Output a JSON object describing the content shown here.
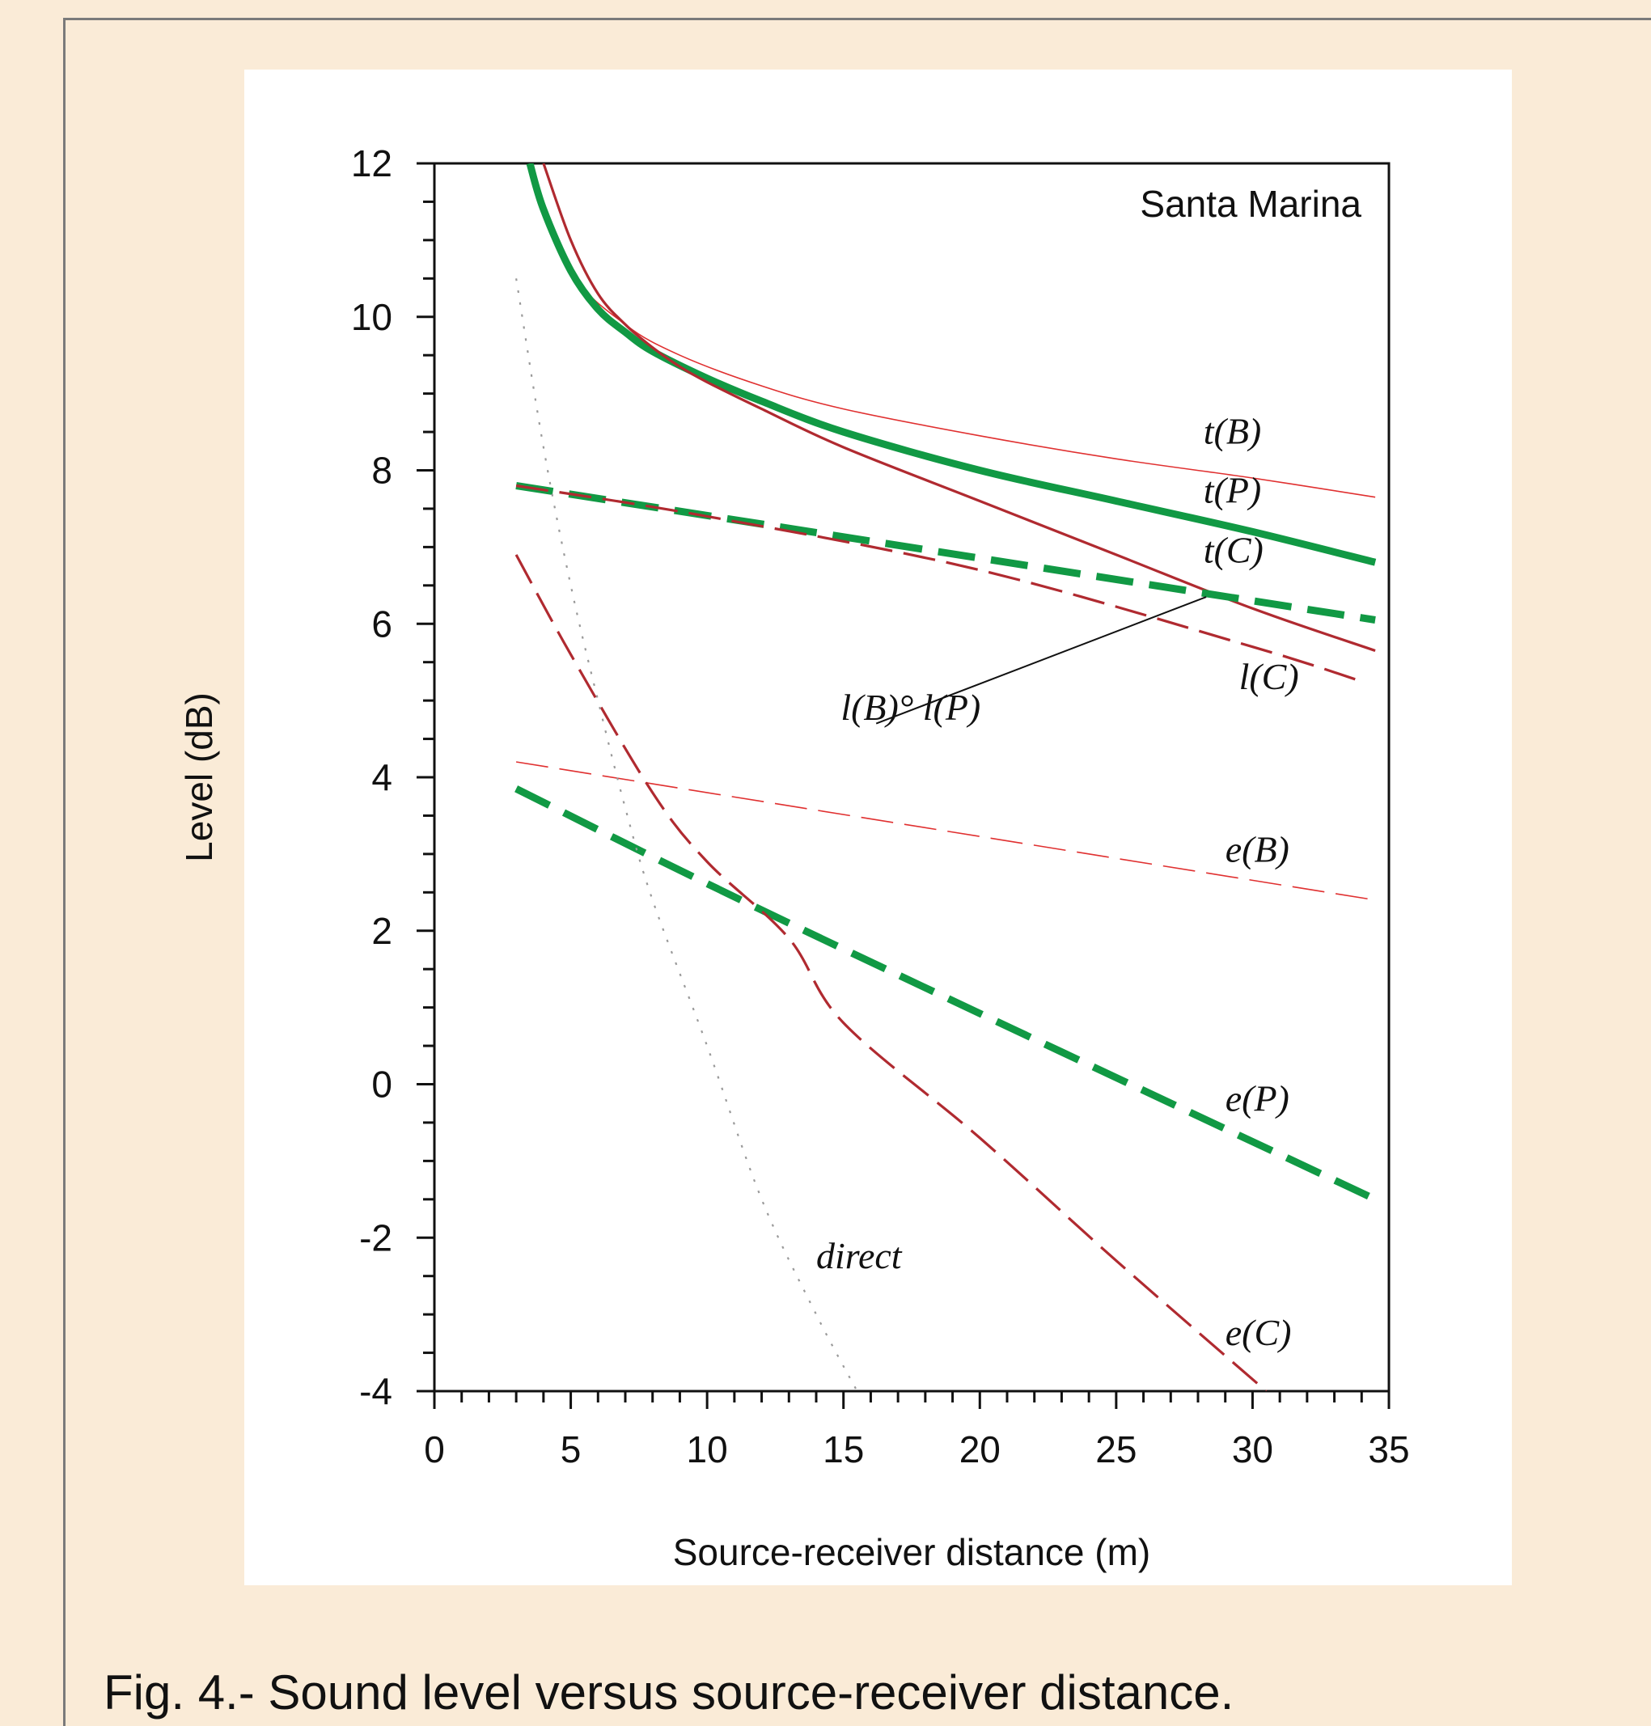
{
  "chart_data": {
    "type": "line",
    "title": "Santa Marina",
    "xlabel": "Source-receiver distance (m)",
    "ylabel": "Level (dB)",
    "xlim": [
      0,
      35
    ],
    "ylim": [
      -4,
      12
    ],
    "x_ticks": [
      "0",
      "5",
      "10",
      "15",
      "20",
      "25",
      "30",
      "35"
    ],
    "y_ticks": [
      "-4",
      "-2",
      "0",
      "2",
      "4",
      "6",
      "8",
      "10",
      "12"
    ],
    "grid": false,
    "legend": "none",
    "series": [
      {
        "name": "t(B)",
        "color": "#e03030",
        "style": "thin-solid",
        "x": [
          3.5,
          5,
          7,
          9,
          12,
          15,
          20,
          25,
          30,
          34.5
        ],
        "y": [
          12.0,
          10.6,
          9.9,
          9.5,
          9.1,
          8.8,
          8.45,
          8.15,
          7.9,
          7.65
        ]
      },
      {
        "name": "t(P)",
        "color": "#119944",
        "style": "thick-solid",
        "x": [
          3.5,
          4,
          5,
          6,
          7,
          8,
          10,
          12,
          15,
          20,
          25,
          30,
          34.5
        ],
        "y": [
          12.0,
          11.4,
          10.6,
          10.1,
          9.8,
          9.55,
          9.2,
          8.9,
          8.5,
          8.0,
          7.6,
          7.2,
          6.8
        ]
      },
      {
        "name": "t(C)",
        "color": "#b02a30",
        "style": "solid",
        "x": [
          4,
          5,
          6,
          7,
          8,
          9,
          10,
          12,
          15,
          20,
          25,
          30,
          34.5
        ],
        "y": [
          12.0,
          11.0,
          10.3,
          9.9,
          9.6,
          9.35,
          9.15,
          8.8,
          8.3,
          7.6,
          6.9,
          6.2,
          5.65
        ]
      },
      {
        "name": "l(B)° l(P)",
        "color": "#119944",
        "style": "thick-dash",
        "x": [
          3,
          34.5
        ],
        "y": [
          7.8,
          6.05
        ]
      },
      {
        "name": "l(C)",
        "color": "#b02a30",
        "style": "dash",
        "x": [
          3,
          10,
          20,
          30,
          34
        ],
        "y": [
          7.8,
          7.4,
          6.7,
          5.7,
          5.25
        ]
      },
      {
        "name": "e(B)",
        "color": "#e03030",
        "style": "thin-dash",
        "x": [
          3,
          34.5
        ],
        "y": [
          4.2,
          2.4
        ]
      },
      {
        "name": "e(P)",
        "color": "#119944",
        "style": "thick-dash",
        "x": [
          3,
          13,
          34.5
        ],
        "y": [
          3.85,
          2.1,
          -1.5
        ]
      },
      {
        "name": "e(C)",
        "color": "#b02a30",
        "style": "dash",
        "x": [
          3,
          5,
          8,
          10,
          13,
          15,
          20,
          25,
          30.5
        ],
        "y": [
          6.9,
          5.6,
          3.8,
          2.9,
          1.9,
          0.8,
          -0.7,
          -2.3,
          -4.0
        ]
      },
      {
        "name": "direct",
        "color": "#9a9a9a",
        "style": "dotted",
        "x": [
          3,
          4,
          5,
          6,
          7,
          8,
          10,
          12,
          14,
          15.5
        ],
        "y": [
          10.5,
          8.3,
          6.5,
          5.0,
          3.6,
          2.4,
          0.5,
          -1.5,
          -3.0,
          -4.0
        ]
      }
    ],
    "annotations": [
      {
        "text": "t(B)",
        "x": 28.2,
        "y": 8.35
      },
      {
        "text": "t(P)",
        "x": 28.2,
        "y": 7.58
      },
      {
        "text": "t(C)",
        "x": 28.2,
        "y": 6.8
      },
      {
        "text": "l(C)",
        "x": 29.5,
        "y": 5.15
      },
      {
        "text": "l(B)° l(P)",
        "x": 14.9,
        "y": 4.75
      },
      {
        "text": "e(B)",
        "x": 29.0,
        "y": 2.9
      },
      {
        "text": "e(P)",
        "x": 29.0,
        "y": -0.35
      },
      {
        "text": "direct",
        "x": 14.0,
        "y": -2.4
      },
      {
        "text": "e(C)",
        "x": 29.0,
        "y": -3.4
      }
    ]
  },
  "caption": "Fig. 4.- Sound level versus source-receiver distance."
}
